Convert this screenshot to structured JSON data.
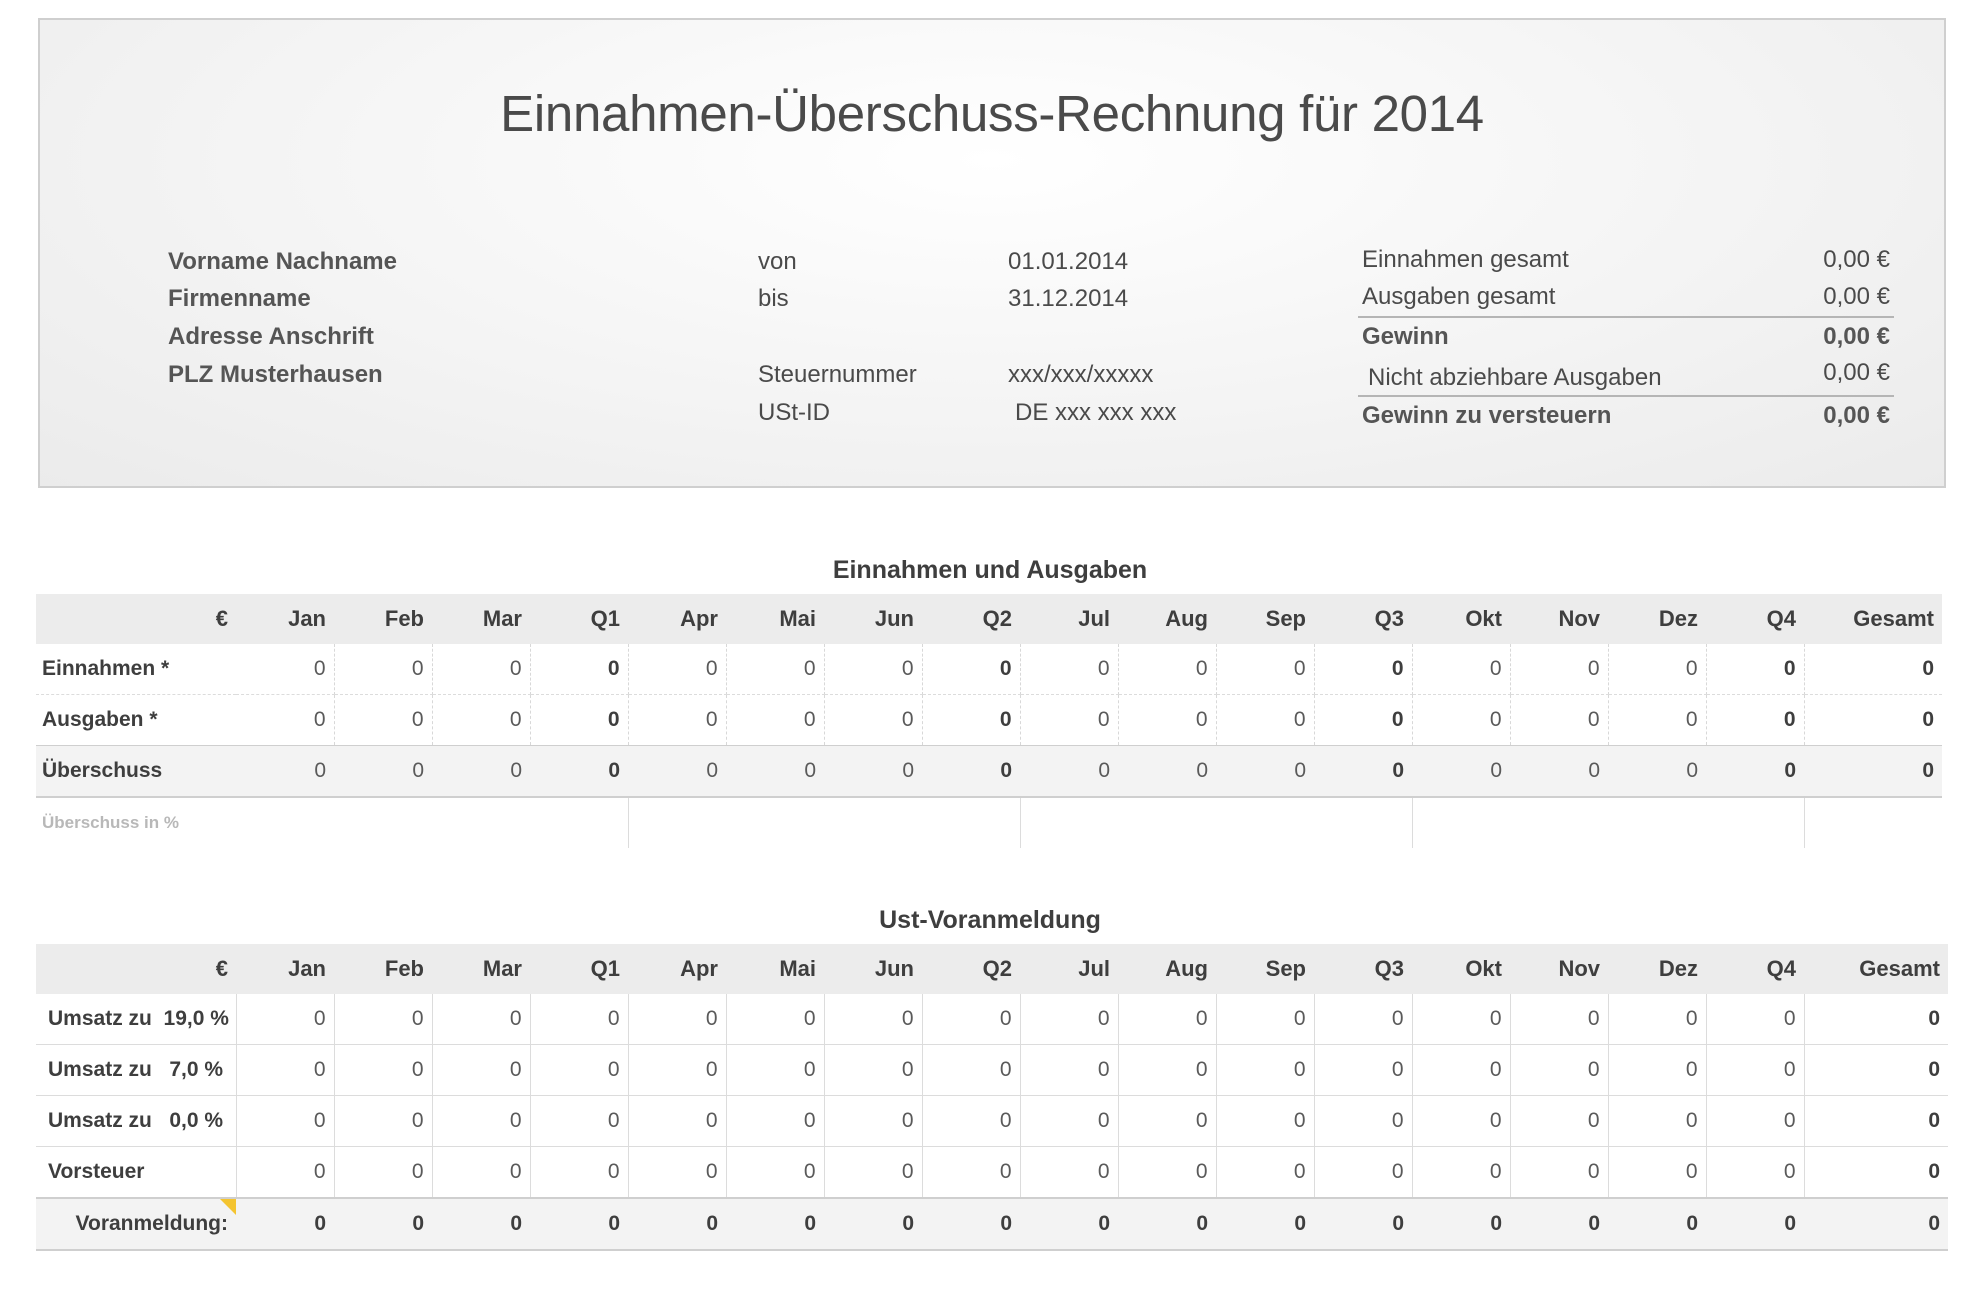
{
  "header": {
    "title": "Einnahmen-Überschuss-Rechnung für 2014",
    "address": [
      "Vorname Nachname",
      "Firmenname",
      "Adresse Anschrift",
      "PLZ Musterhausen"
    ],
    "period": {
      "from_label": "von",
      "from_value": "01.01.2014",
      "to_label": "bis",
      "to_value": "31.12.2014"
    },
    "tax": {
      "steuernummer_label": "Steuernummer",
      "steuernummer_value": "xxx/xxx/xxxxx",
      "ustid_label": "USt-ID",
      "ustid_value": "DE xxx xxx xxx"
    },
    "summary": {
      "einnahmen_label": "Einnahmen gesamt",
      "einnahmen_value": "0,00 €",
      "ausgaben_label": "Ausgaben gesamt",
      "ausgaben_value": "0,00 €",
      "gewinn_label": "Gewinn",
      "gewinn_value": "0,00 €",
      "nicht_label": "Nicht abziehbare Ausgaben",
      "nicht_value": "0,00 €",
      "versteuern_label": "Gewinn zu versteuern",
      "versteuern_value": "0,00 €"
    }
  },
  "income_table": {
    "title": "Einnahmen und Ausgaben",
    "corner": "€",
    "columns": [
      "Jan",
      "Feb",
      "Mar",
      "Q1",
      "Apr",
      "Mai",
      "Jun",
      "Q2",
      "Jul",
      "Aug",
      "Sep",
      "Q3",
      "Okt",
      "Nov",
      "Dez",
      "Q4",
      "Gesamt"
    ],
    "rows": [
      {
        "label": "Einnahmen *",
        "values": [
          "0",
          "0",
          "0",
          "0",
          "0",
          "0",
          "0",
          "0",
          "0",
          "0",
          "0",
          "0",
          "0",
          "0",
          "0",
          "0",
          "0"
        ]
      },
      {
        "label": "Ausgaben *",
        "values": [
          "0",
          "0",
          "0",
          "0",
          "0",
          "0",
          "0",
          "0",
          "0",
          "0",
          "0",
          "0",
          "0",
          "0",
          "0",
          "0",
          "0"
        ]
      },
      {
        "label": "Überschuss",
        "values": [
          "0",
          "0",
          "0",
          "0",
          "0",
          "0",
          "0",
          "0",
          "0",
          "0",
          "0",
          "0",
          "0",
          "0",
          "0",
          "0",
          "0"
        ]
      }
    ],
    "pct_label": "Überschuss in %"
  },
  "vat_table": {
    "title": "Ust-Voranmeldung",
    "corner": "€",
    "columns": [
      "Jan",
      "Feb",
      "Mar",
      "Q1",
      "Apr",
      "Mai",
      "Jun",
      "Q2",
      "Jul",
      "Aug",
      "Sep",
      "Q3",
      "Okt",
      "Nov",
      "Dez",
      "Q4",
      "Gesamt"
    ],
    "rows": [
      {
        "label": "Umsatz zu  19,0 %",
        "values": [
          "0",
          "0",
          "0",
          "0",
          "0",
          "0",
          "0",
          "0",
          "0",
          "0",
          "0",
          "0",
          "0",
          "0",
          "0",
          "0",
          "0"
        ]
      },
      {
        "label": "Umsatz zu   7,0 %",
        "values": [
          "0",
          "0",
          "0",
          "0",
          "0",
          "0",
          "0",
          "0",
          "0",
          "0",
          "0",
          "0",
          "0",
          "0",
          "0",
          "0",
          "0"
        ]
      },
      {
        "label": "Umsatz zu   0,0 %",
        "values": [
          "0",
          "0",
          "0",
          "0",
          "0",
          "0",
          "0",
          "0",
          "0",
          "0",
          "0",
          "0",
          "0",
          "0",
          "0",
          "0",
          "0"
        ]
      },
      {
        "label": "Vorsteuer",
        "values": [
          "0",
          "0",
          "0",
          "0",
          "0",
          "0",
          "0",
          "0",
          "0",
          "0",
          "0",
          "0",
          "0",
          "0",
          "0",
          "0",
          "0"
        ]
      }
    ],
    "sum_row": {
      "label": "Voranmeldung:",
      "values": [
        "0",
        "0",
        "0",
        "0",
        "0",
        "0",
        "0",
        "0",
        "0",
        "0",
        "0",
        "0",
        "0",
        "0",
        "0",
        "0",
        "0"
      ]
    }
  }
}
